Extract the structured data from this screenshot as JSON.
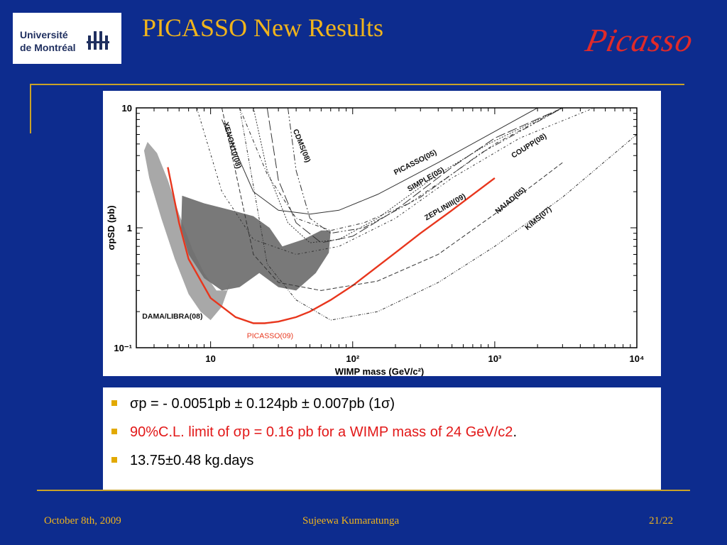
{
  "header": {
    "logo_line1": "Université",
    "logo_line2": "de Montréal",
    "title": "PICASSO New Results",
    "brand": "Picasso"
  },
  "chart_data": {
    "type": "line",
    "x_scale": "log",
    "y_scale": "log",
    "xlim": [
      3,
      10000
    ],
    "ylim": [
      0.1,
      10
    ],
    "xlabel": "WIMP mass (GeV/c²)",
    "ylabel": "σpSD (pb)",
    "x_ticks": [
      "10",
      "10²",
      "10³",
      "10⁴"
    ],
    "y_ticks": [
      "10",
      "1",
      "10⁻¹"
    ],
    "series": [
      {
        "name": "PICASSO(09)",
        "color": "#e8361d",
        "x": [
          5,
          6,
          7,
          10,
          15,
          20,
          24,
          30,
          40,
          50,
          70,
          100,
          200,
          300,
          500,
          1000
        ],
        "y": [
          3.2,
          1.1,
          0.55,
          0.26,
          0.18,
          0.16,
          0.16,
          0.165,
          0.18,
          0.2,
          0.25,
          0.33,
          0.62,
          0.9,
          1.4,
          2.6
        ]
      },
      {
        "name": "PICASSO(05)",
        "x": [
          12,
          20,
          30,
          50,
          80,
          150,
          400,
          800,
          2000,
          6000
        ],
        "y": [
          8,
          2,
          1.4,
          1.3,
          1.4,
          1.9,
          3.5,
          5.5,
          10,
          12
        ]
      },
      {
        "name": "SIMPLE(05)",
        "x": [
          16,
          25,
          40,
          70,
          120,
          250,
          500,
          1000,
          3000
        ],
        "y": [
          10,
          2.8,
          1.2,
          0.95,
          1.1,
          1.6,
          2.8,
          5,
          10
        ]
      },
      {
        "name": "ZEPLINIII(09)",
        "x": [
          25,
          30,
          40,
          60,
          100,
          200,
          500,
          1000,
          3000
        ],
        "y": [
          10,
          2.5,
          1.1,
          0.75,
          0.85,
          1.4,
          3.2,
          5.6,
          10
        ]
      },
      {
        "name": "XENON10(08)",
        "x": [
          20,
          25,
          35,
          50,
          80,
          150,
          400,
          900,
          3000
        ],
        "y": [
          10,
          3,
          1.1,
          0.75,
          0.8,
          1.2,
          2.8,
          5,
          10
        ]
      },
      {
        "name": "CDMS(08)",
        "x": [
          35,
          40,
          50,
          70,
          120,
          300,
          800,
          3000
        ],
        "y": [
          10,
          3,
          1.2,
          0.9,
          1,
          1.8,
          4.2,
          10
        ]
      },
      {
        "name": "COUPP(08)",
        "x": [
          8,
          12,
          20,
          40,
          80,
          200,
          500,
          1500,
          5000
        ],
        "y": [
          10,
          2,
          0.8,
          0.6,
          0.7,
          1.2,
          2.6,
          5.6,
          10
        ]
      },
      {
        "name": "NAIAD(05)",
        "x": [
          12,
          20,
          30,
          60,
          150,
          400,
          1000,
          3000
        ],
        "y": [
          10,
          0.6,
          0.35,
          0.3,
          0.36,
          0.6,
          1.3,
          3.5
        ]
      },
      {
        "name": "KIMS(07)",
        "x": [
          16,
          25,
          40,
          70,
          150,
          400,
          1000,
          3000,
          10000
        ],
        "y": [
          10,
          0.5,
          0.25,
          0.17,
          0.2,
          0.35,
          0.7,
          1.8,
          6
        ]
      }
    ],
    "regions": [
      {
        "name": "DAMA/LIBRA(08)",
        "color": "#a8a8a8"
      },
      {
        "name": "",
        "color": "#6e6e6e"
      }
    ]
  },
  "bullets": [
    {
      "text": "σp = - 0.0051pb ± 0.124pb ± 0.007pb (1σ)"
    },
    {
      "text": "90%C.L.  limit of σp = 0.16 pb for a WIMP mass of 24 GeV/c2",
      "suffix": "."
    },
    {
      "text": "13.75±0.48 kg.days"
    }
  ],
  "footer": {
    "date": "October 8th, 2009",
    "author": "Sujeewa Kumaratunga",
    "page": "21/22"
  },
  "colors": {
    "background": "#0d2c8e",
    "title": "#f0b41c",
    "accent_line": "#c9a227",
    "picasso_red": "#e8361d"
  }
}
